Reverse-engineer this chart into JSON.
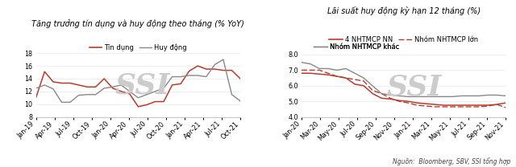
{
  "chart1": {
    "title": "Tăng trưởng tín dụng và huy động theo tháng (% YoY)",
    "legend": [
      "Tín dụng",
      "Huy động"
    ],
    "xticks": [
      "Jan-19",
      "Apr-19",
      "Jul-19",
      "Oct-19",
      "Jan-20",
      "Apr-20",
      "Jul-20",
      "Oct-20",
      "Jan-21",
      "Apr-21",
      "Jul-21",
      "Oct-21"
    ],
    "ylim": [
      8,
      19
    ],
    "yticks": [
      8,
      10,
      12,
      14,
      16,
      18
    ],
    "tin_dung": [
      11.1,
      15.1,
      13.5,
      13.3,
      13.3,
      13.0,
      12.7,
      12.7,
      14.0,
      12.5,
      12.0,
      11.6,
      9.6,
      9.9,
      10.4,
      10.4,
      13.0,
      13.2,
      15.2,
      16.0,
      15.5,
      15.5,
      15.3,
      15.3,
      14.0
    ],
    "huy_dong": [
      12.5,
      13.0,
      12.4,
      10.3,
      10.3,
      11.4,
      11.5,
      11.5,
      12.5,
      12.7,
      13.0,
      12.0,
      11.0,
      11.5,
      12.0,
      12.5,
      14.3,
      14.3,
      14.5,
      14.5,
      14.3,
      16.2,
      17.0,
      11.5,
      10.5
    ],
    "line1_color": "#c0392b",
    "line2_color": "#888888",
    "watermark": "SSI",
    "watermark_color": "#cccccc"
  },
  "chart2": {
    "title": "Lãi suất huy động kỳ hạn 12 tháng (%)",
    "legend1": "4 NHTMCP NN",
    "legend2": "Nhóm NHTMCP lớn",
    "legend3": "Nhóm NHTMCP khác",
    "xticks": [
      "Jan-20",
      "Mar-20",
      "May-20",
      "Jul-20",
      "Sep-20",
      "Nov-20",
      "Jan-21",
      "Mar-21",
      "May-21",
      "Jul-21",
      "Sep-21",
      "Nov-21"
    ],
    "ylim": [
      4.0,
      8.5
    ],
    "yticks": [
      4.0,
      5.0,
      6.0,
      7.0,
      8.0
    ],
    "nn": [
      6.8,
      6.8,
      6.75,
      6.7,
      6.6,
      6.5,
      6.1,
      6.0,
      5.5,
      5.2,
      5.15,
      5.05,
      5.0,
      4.9,
      4.85,
      4.8,
      4.75,
      4.75,
      4.75,
      4.75,
      4.75,
      4.75,
      4.8,
      4.9
    ],
    "lon": [
      7.0,
      7.0,
      7.0,
      6.8,
      6.6,
      6.5,
      6.4,
      6.3,
      5.7,
      5.5,
      5.2,
      5.0,
      4.9,
      4.75,
      4.7,
      4.65,
      4.65,
      4.65,
      4.65,
      4.65,
      4.65,
      4.7,
      4.8,
      4.6
    ],
    "khac": [
      7.5,
      7.4,
      7.1,
      7.1,
      7.0,
      7.1,
      6.8,
      6.5,
      6.0,
      5.5,
      5.4,
      5.35,
      5.3,
      5.3,
      5.3,
      5.3,
      5.3,
      5.3,
      5.35,
      5.35,
      5.35,
      5.4,
      5.4,
      5.35
    ],
    "line1_color": "#c0392b",
    "line2_color": "#c0392b",
    "line3_color": "#888888",
    "watermark": "SSI",
    "watermark_color": "#cccccc",
    "source_text": "Nguồn:  Bloomberg, SBV, SSI tổng hợp"
  },
  "bg_color": "#ffffff",
  "title_fontsize": 7.0,
  "tick_fontsize": 5.8,
  "legend_fontsize": 6.0
}
